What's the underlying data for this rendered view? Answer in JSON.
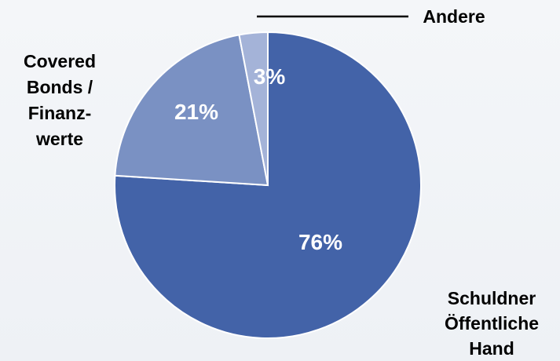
{
  "chart_data": {
    "type": "pie",
    "title": "",
    "slices": [
      {
        "label": "Schuldner Öffentliche Hand",
        "label_lines": [
          "Schuldner",
          "Öffentliche",
          "Hand"
        ],
        "value": 76,
        "display": "76%",
        "color": "#4363a8"
      },
      {
        "label": "Covered Bonds / Finanzwerte",
        "label_lines": [
          "Covered",
          "Bonds /",
          "Finanz-",
          "werte"
        ],
        "value": 21,
        "display": "21%",
        "color": "#7a91c3"
      },
      {
        "label": "Andere",
        "label_lines": [
          "Andere"
        ],
        "value": 3,
        "display": "3%",
        "color": "#a4b3d8"
      }
    ]
  }
}
